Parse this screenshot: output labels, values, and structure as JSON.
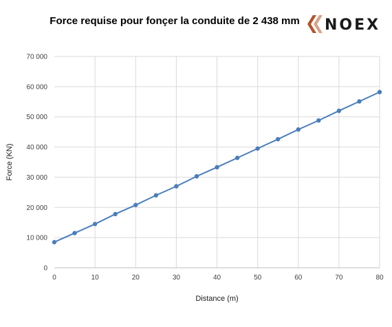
{
  "chart_data": {
    "type": "line",
    "title": "Force requise pour fonçer la conduite de 2 438 mm",
    "xlabel": "Distance (m)",
    "ylabel": "Force (KN)",
    "x": [
      0,
      5,
      10,
      15,
      20,
      25,
      30,
      35,
      40,
      45,
      50,
      55,
      60,
      65,
      70,
      75,
      80
    ],
    "series": [
      {
        "values": [
          8500,
          11500,
          14500,
          17800,
          20800,
          24000,
          27000,
          30300,
          33300,
          36400,
          39500,
          42600,
          45800,
          48800,
          52000,
          55100,
          58200
        ],
        "color": "#4a7ebb"
      }
    ],
    "xlim": [
      0,
      80
    ],
    "ylim": [
      0,
      70000
    ],
    "x_ticks": [
      "0",
      "10",
      "20",
      "30",
      "40",
      "50",
      "60",
      "70",
      "80"
    ],
    "y_ticks": [
      "0",
      "10 000",
      "20 000",
      "30 000",
      "40 000",
      "50 000",
      "60 000",
      "70 000"
    ],
    "grid": true,
    "legend": "none"
  },
  "brand": {
    "name": "NOEX",
    "logo_color": "#b5532a",
    "text_color": "#1a1a1a"
  }
}
